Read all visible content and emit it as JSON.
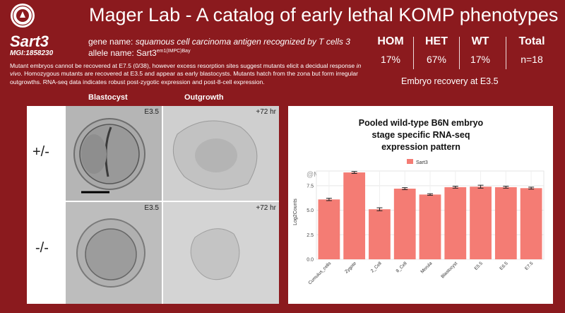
{
  "header": {
    "title": "Mager Lab - A catalog of early lethal KOMP phenotypes"
  },
  "gene": {
    "symbol": "Sart3",
    "mgi": "MGI:1858230",
    "gene_name_label": "gene name: ",
    "gene_name": "squamous cell carcinoma antigen recognized by T cells 3",
    "allele_label": "allele name: Sart3",
    "allele_sup": "em1(IMPC)Bay"
  },
  "description": {
    "part1": "Mutant embryos cannot be recovered at E7.5 (0/38), however excess resorption sites suggest mutants elicit a decidual response ",
    "italic": "in vivo",
    "part2": ". Homozygous mutants are recovered at E3.5 and appear as early blastocysts. Mutants hatch from the zona but form irregular outgrowths. RNA-seq data indicates robust post-zygotic expression and post-8-cell expression."
  },
  "recovery": {
    "hom_label": "HOM",
    "hom_value": "17%",
    "het_label": "HET",
    "het_value": "67%",
    "wt_label": "WT",
    "wt_value": "17%",
    "total_label": "Total",
    "total_value": "n=18",
    "caption": "Embryo recovery at E3.5"
  },
  "images": {
    "col_blastocyst": "Blastocyst",
    "col_outgrowth": "Outgrowth",
    "row_het": "+/-",
    "row_hom": "-/-",
    "tag_e35": "E3.5",
    "tag_72hr": "+72 hr"
  },
  "chart_data": {
    "type": "bar",
    "title_lines": [
      "Pooled wild-type B6N embryo",
      "stage specific RNA-seq",
      "expression pattern"
    ],
    "watermark": "@Mager Lab",
    "legend": "Sart3",
    "legend_position": "top",
    "ylabel": "Log2Counts",
    "categories": [
      "Cumulus_cells",
      "Zygote",
      "2_Cell",
      "8_Cell",
      "Morula",
      "Blastocyst",
      "E5.5",
      "E6.5",
      "E7.5"
    ],
    "values": [
      6.1,
      8.85,
      5.1,
      7.2,
      6.6,
      7.35,
      7.4,
      7.35,
      7.25
    ],
    "errors": [
      0.12,
      0.1,
      0.15,
      0.1,
      0.08,
      0.1,
      0.15,
      0.1,
      0.1
    ],
    "yticks": [
      "0.0",
      "2.5",
      "5.0",
      "7.5"
    ],
    "ylim": [
      0,
      9
    ],
    "color": "#f47c74",
    "grid": true
  }
}
